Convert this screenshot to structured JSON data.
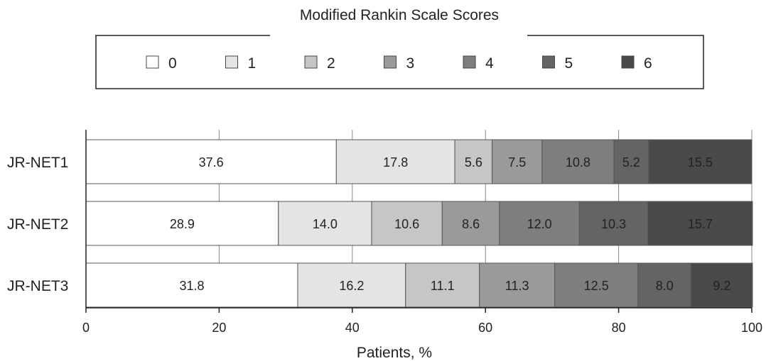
{
  "chart_data": {
    "type": "bar",
    "orientation": "horizontal",
    "stacked": true,
    "legend_title": "Modified Rankin Scale Scores",
    "legend_placement": "top",
    "xlabel": "Patients, %",
    "ylabel": "",
    "xlim": [
      0,
      100
    ],
    "xticks": [
      0,
      20,
      40,
      60,
      80,
      100
    ],
    "grid": true,
    "categories": [
      "JR-NET1",
      "JR-NET2",
      "JR-NET3"
    ],
    "series": [
      {
        "name": "0",
        "color": "#ffffff",
        "values": [
          37.6,
          28.9,
          31.8
        ]
      },
      {
        "name": "1",
        "color": "#e4e4e4",
        "values": [
          17.8,
          14.0,
          16.2
        ]
      },
      {
        "name": "2",
        "color": "#c6c6c6",
        "values": [
          5.6,
          10.6,
          11.1
        ]
      },
      {
        "name": "3",
        "color": "#9a9a9a",
        "values": [
          7.5,
          8.6,
          11.3
        ]
      },
      {
        "name": "4",
        "color": "#7e7e7e",
        "values": [
          10.8,
          12.0,
          12.5
        ]
      },
      {
        "name": "5",
        "color": "#646464",
        "values": [
          5.2,
          10.3,
          8.0
        ]
      },
      {
        "name": "6",
        "color": "#4a4a4a",
        "values": [
          15.5,
          15.7,
          9.2
        ]
      }
    ]
  }
}
